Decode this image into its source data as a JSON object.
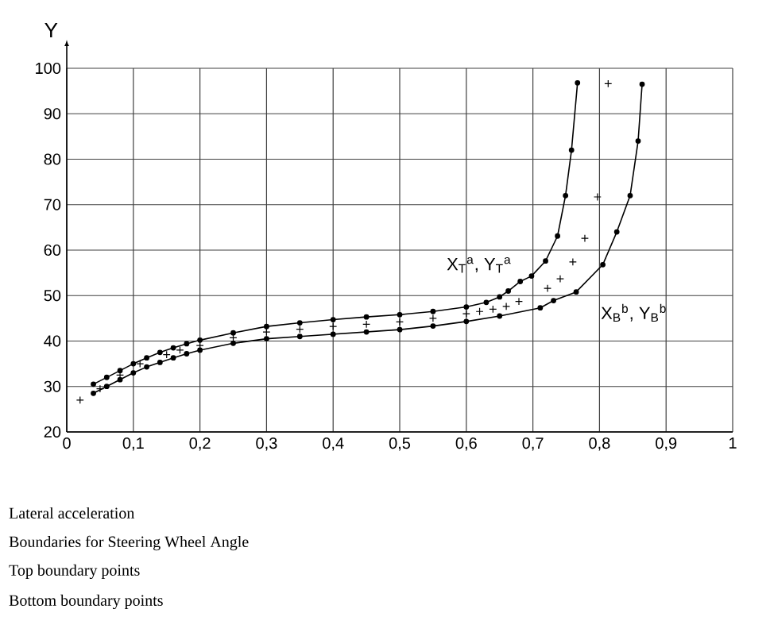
{
  "chart_data": {
    "type": "line",
    "ylabel": "Y",
    "xlim": [
      0,
      1
    ],
    "ylim": [
      20,
      100
    ],
    "xticks": [
      0,
      {
        "value": 0.1,
        "label": "0,1"
      },
      {
        "value": 0.2,
        "label": "0,2"
      },
      {
        "value": 0.3,
        "label": "0,3"
      },
      {
        "value": 0.4,
        "label": "0,4"
      },
      {
        "value": 0.5,
        "label": "0,5"
      },
      {
        "value": 0.6,
        "label": "0,6"
      },
      {
        "value": 0.7,
        "label": "0,7"
      },
      {
        "value": 0.8,
        "label": "0,8"
      },
      {
        "value": 0.9,
        "label": "0,9"
      },
      1
    ],
    "yticks": [
      20,
      30,
      40,
      50,
      60,
      70,
      80,
      90,
      100
    ],
    "grid": true,
    "series": [
      {
        "marker": "circle",
        "color": "#000000",
        "x": [
          0.04,
          0.06,
          0.08,
          0.1,
          0.12,
          0.14,
          0.16,
          0.18,
          0.2,
          0.25,
          0.3,
          0.35,
          0.4,
          0.45,
          0.5,
          0.55,
          0.6,
          0.63,
          0.65,
          0.663,
          0.681,
          0.698,
          0.719,
          0.737,
          0.749,
          0.758,
          0.767
        ],
        "values": [
          30.5,
          32,
          33.5,
          35,
          36.3,
          37.5,
          38.5,
          39.4,
          40.2,
          41.8,
          43.2,
          44,
          44.7,
          45.3,
          45.8,
          46.5,
          47.5,
          48.5,
          49.7,
          51,
          53.1,
          54.3,
          57.6,
          63.1,
          72,
          82,
          96.8
        ]
      },
      {
        "marker": "circle",
        "color": "#000000",
        "x": [
          0.04,
          0.06,
          0.08,
          0.1,
          0.12,
          0.14,
          0.16,
          0.18,
          0.2,
          0.25,
          0.3,
          0.35,
          0.4,
          0.45,
          0.5,
          0.55,
          0.6,
          0.65,
          0.711,
          0.731,
          0.765,
          0.805,
          0.826,
          0.846,
          0.858,
          0.864
        ],
        "values": [
          28.5,
          30,
          31.5,
          33,
          34.3,
          35.3,
          36.3,
          37.2,
          38,
          39.5,
          40.5,
          41,
          41.5,
          42,
          42.5,
          43.3,
          44.3,
          45.5,
          47.3,
          48.9,
          50.8,
          56.8,
          64,
          72,
          84,
          96.5
        ]
      },
      {
        "type": "scatter",
        "marker": "cross",
        "color": "#000000",
        "x": [
          0.02,
          0.05,
          0.08,
          0.11,
          0.15,
          0.17,
          0.2,
          0.25,
          0.3,
          0.35,
          0.4,
          0.45,
          0.5,
          0.55,
          0.6,
          0.62,
          0.64,
          0.66,
          0.679,
          0.722,
          0.741,
          0.76,
          0.778,
          0.797,
          0.813
        ],
        "values": [
          27,
          29.5,
          32.5,
          35,
          37,
          38,
          39,
          40.7,
          42,
          42.6,
          43.2,
          43.7,
          44.2,
          45,
          46,
          46.5,
          47,
          47.6,
          48.7,
          51.6,
          53.7,
          57.4,
          62.6,
          71.7,
          96.6
        ]
      }
    ],
    "annotations": [
      {
        "text": "X$_{T}$$^{a}$, Y$_{T}$$^{a}$",
        "x": 0.681,
        "y": 53.1
      },
      {
        "text": "X$_{B}$$^{b}$, Y$_{B}$$^{b}$",
        "x": 0.765,
        "y": 50.8
      },
      "Lateral acceleration",
      "Boundaries for Steering Wheel Angle",
      "Top boundary points",
      "Bottom boundary points"
    ]
  }
}
